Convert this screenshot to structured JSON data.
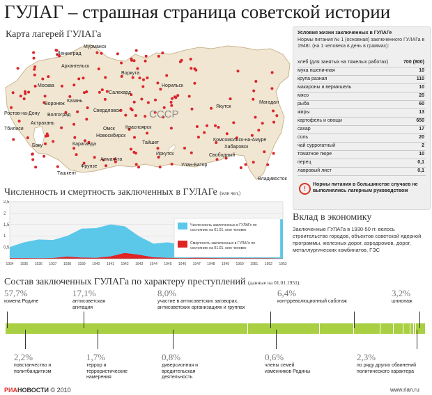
{
  "title": "ГУЛАГ – страшная страница советской истории",
  "map": {
    "title": "Карта лагерей ГУЛАГа",
    "country_label": "СССР",
    "cities": [
      {
        "name": "Мурманск"
      },
      {
        "name": "Ленинград"
      },
      {
        "name": "Архангельск"
      },
      {
        "name": "Воркута"
      },
      {
        "name": "Москва"
      },
      {
        "name": "Норильск"
      },
      {
        "name": "Салехард"
      },
      {
        "name": "Казань"
      },
      {
        "name": "Свердловск"
      },
      {
        "name": "Воронеж"
      },
      {
        "name": "Волгоград"
      },
      {
        "name": "Ростов-на-Дону"
      },
      {
        "name": "Астрахань"
      },
      {
        "name": "Тбилиси"
      },
      {
        "name": "Омск"
      },
      {
        "name": "Новосибирск"
      },
      {
        "name": "Красноярск"
      },
      {
        "name": "Якутск"
      },
      {
        "name": "Магадан"
      },
      {
        "name": "Караганда"
      },
      {
        "name": "Тайшет"
      },
      {
        "name": "Иркутск"
      },
      {
        "name": "Баку"
      },
      {
        "name": "Ташкент"
      },
      {
        "name": "Фрунзе"
      },
      {
        "name": "Алма-Ата"
      },
      {
        "name": "Улан-Батор"
      },
      {
        "name": "Свободный"
      },
      {
        "name": "Комсомольск-на-Амуре"
      },
      {
        "name": "Хабаровск"
      },
      {
        "name": "Владивосток"
      }
    ]
  },
  "rations": {
    "header": "Условия жизни заключенных в ГУЛАГе",
    "subheader": "Нормы питания № 1 (основная) заключенного ГУЛАГа в 1948г. (на 1 человека в день в граммах):",
    "items": [
      {
        "name": "хлеб (для занятых на тяжелых работах)",
        "value": "700 (800)"
      },
      {
        "name": "мука пшеничная",
        "value": "10"
      },
      {
        "name": "крупа разная",
        "value": "110"
      },
      {
        "name": "макароны и вермишель",
        "value": "10"
      },
      {
        "name": "мясо",
        "value": "20"
      },
      {
        "name": "рыба",
        "value": "60"
      },
      {
        "name": "жиры",
        "value": "13"
      },
      {
        "name": "картофель и овощи",
        "value": "650"
      },
      {
        "name": "сахар",
        "value": "17"
      },
      {
        "name": "соль",
        "value": "20"
      },
      {
        "name": "чай суррогатный",
        "value": "2"
      },
      {
        "name": "томатное пюре",
        "value": "10"
      },
      {
        "name": "перец",
        "value": "0,1"
      },
      {
        "name": "лавровый лист",
        "value": "0,1"
      }
    ],
    "warning": "Нормы питания в большинстве случаев не выполнялись лагерным руководством",
    "warning_icon": "exclamation-icon"
  },
  "chart_title": "Численность и смертность заключенных в ГУЛАГе",
  "chart_unit": "(млн чел.)",
  "chart_data": {
    "type": "area",
    "x": [
      "1934",
      "1936",
      "1938",
      "1940",
      "1942",
      "1944",
      "1946",
      "1948",
      "1950",
      "1953"
    ],
    "ylim": [
      0,
      2.5
    ],
    "yticks": [
      "2,5",
      "2",
      "1,5",
      "1",
      "0,5"
    ],
    "xticks": [
      "1934",
      "1935",
      "1936",
      "1937",
      "1938",
      "1939",
      "1940",
      "1941",
      "1942",
      "1943",
      "1944",
      "1945",
      "1946",
      "1947",
      "1948",
      "1949",
      "1950",
      "1951",
      "1952",
      "1953"
    ],
    "grid": true,
    "legend_position": "right",
    "series": [
      {
        "name": "Численность заключенных в ГУЛАГе по состоянию на 01.01, млн человек",
        "color": "#5bc8ea",
        "x": [
          1934,
          1935,
          1936,
          1937,
          1938,
          1939,
          1940,
          1941,
          1942,
          1943,
          1944,
          1945,
          1946,
          1947,
          1948,
          1949,
          1950,
          1951,
          1952,
          1953
        ],
        "values": [
          0.51,
          0.72,
          0.84,
          0.82,
          1.0,
          1.32,
          1.34,
          1.5,
          1.42,
          0.98,
          0.66,
          0.72,
          0.6,
          0.8,
          1.1,
          1.22,
          1.43,
          1.53,
          1.72,
          1.73
        ]
      },
      {
        "name": "Смертность заключенных в ГУЛАГе по состоянию на 01.01, млн человек",
        "color": "#e02424",
        "x": [
          1934,
          1935,
          1936,
          1937,
          1938,
          1939,
          1940,
          1941,
          1942,
          1943,
          1944,
          1945,
          1946,
          1947,
          1948,
          1949,
          1950,
          1951,
          1952,
          1953
        ],
        "values": [
          0.03,
          0.03,
          0.02,
          0.03,
          0.09,
          0.05,
          0.04,
          0.1,
          0.25,
          0.17,
          0.06,
          0.04,
          0.02,
          0.04,
          0.03,
          0.02,
          0.02,
          0.02,
          0.02,
          0.01
        ]
      }
    ]
  },
  "economy": {
    "title": "Вклад в экономику",
    "text": "Заключенные ГУЛАГа в 1930-50 гг. велось строительство городов, объектов советской ядерной программы, железных дорог, аэродромов, дорог, металлургических комбинатов, ГЭС"
  },
  "composition": {
    "title": "Состав заключенных ГУЛАГа по характеру преступлений",
    "date_note": "(данные на 01.01.1951):",
    "top": [
      {
        "pct": "57,7%",
        "label": "измена Родине"
      },
      {
        "pct": "17,1%",
        "label": "антисоветская агитация"
      },
      {
        "pct": "8,0%",
        "label": "участие в антисоветских заговорах, антисоветских организациях и группах"
      },
      {
        "pct": "6,4%",
        "label": "контрреволюционный саботаж"
      },
      {
        "pct": "3,2%",
        "label": "шпионаж"
      }
    ],
    "bottom": [
      {
        "pct": "2,2%",
        "label": "повстанчество и политбандитизм"
      },
      {
        "pct": "1,7%",
        "label": "террор и террористические намерения"
      },
      {
        "pct": "0,8%",
        "label": "диверсионная и вредительская деятельность"
      },
      {
        "pct": "0,6%",
        "label": "члены семей изменников Родины"
      },
      {
        "pct": "2,3%",
        "label": "по ряду других обвинений политического характера"
      }
    ],
    "bar_color": "#a9cf43"
  },
  "footer": {
    "brand_a": "РИА",
    "brand_b": "НОВОСТИ",
    "year": "© 2010",
    "site": "www.rian.ru"
  }
}
